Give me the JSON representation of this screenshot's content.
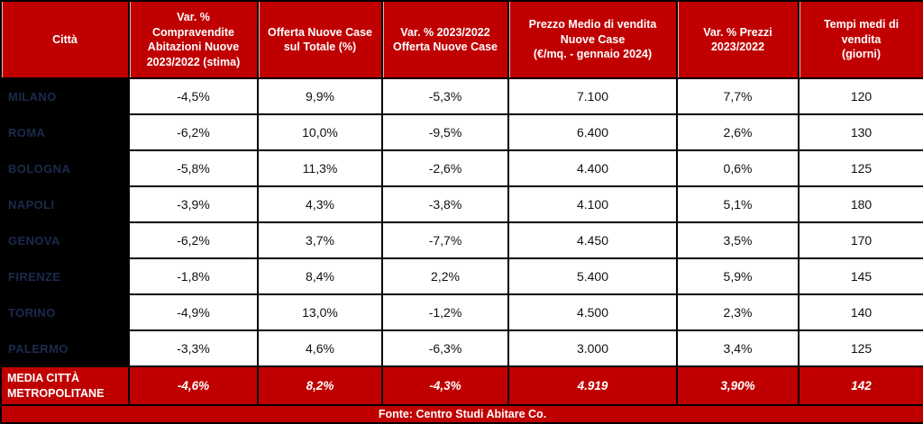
{
  "colors": {
    "accent_red": "#C00000",
    "first_column_background": "#000000",
    "city_text": "#1b2a4c",
    "header_text": "#ffffff",
    "cell_background": "#ffffff",
    "cell_text": "#111111",
    "grid_border": "#000000"
  },
  "chart_data": {
    "type": "table",
    "columns": [
      "Città",
      "Var. %\nCompravendite\nAbitazioni Nuove\n2023/2022 (stima)",
      "Offerta Nuove Case\nsul Totale (%)",
      "Var. % 2023/2022\nOfferta Nuove Case",
      "Prezzo Medio di vendita\nNuove Case\n(€/mq. - gennaio 2024)",
      "Var. % Prezzi\n2023/2022",
      "Tempi medi di\nvendita\n(giorni)"
    ],
    "rows": [
      {
        "city": "MILANO",
        "values": [
          "-4,5%",
          "9,9%",
          "-5,3%",
          "7.100",
          "7,7%",
          "120"
        ]
      },
      {
        "city": "ROMA",
        "values": [
          "-6,2%",
          "10,0%",
          "-9,5%",
          "6.400",
          "2,6%",
          "130"
        ]
      },
      {
        "city": "BOLOGNA",
        "values": [
          "-5,8%",
          "11,3%",
          "-2,6%",
          "4.400",
          "0,6%",
          "125"
        ]
      },
      {
        "city": "NAPOLI",
        "values": [
          "-3,9%",
          "4,3%",
          "-3,8%",
          "4.100",
          "5,1%",
          "180"
        ]
      },
      {
        "city": "GENOVA",
        "values": [
          "-6,2%",
          "3,7%",
          "-7,7%",
          "4.450",
          "3,5%",
          "170"
        ]
      },
      {
        "city": "FIRENZE",
        "values": [
          "-1,8%",
          "8,4%",
          "2,2%",
          "5.400",
          "5,9%",
          "145"
        ]
      },
      {
        "city": "TORINO",
        "values": [
          "-4,9%",
          "13,0%",
          "-1,2%",
          "4.500",
          "2,3%",
          "140"
        ]
      },
      {
        "city": "PALERMO",
        "values": [
          "-3,3%",
          "4,6%",
          "-6,3%",
          "3.000",
          "3,4%",
          "125"
        ]
      }
    ],
    "summary_row": {
      "label": "MEDIA CITTÀ\nMETROPOLITANE",
      "values": [
        "-4,6%",
        "8,2%",
        "-4,3%",
        "4.919",
        "3,90%",
        "142"
      ]
    },
    "footer": "Fonte: Centro Studi Abitare Co."
  }
}
